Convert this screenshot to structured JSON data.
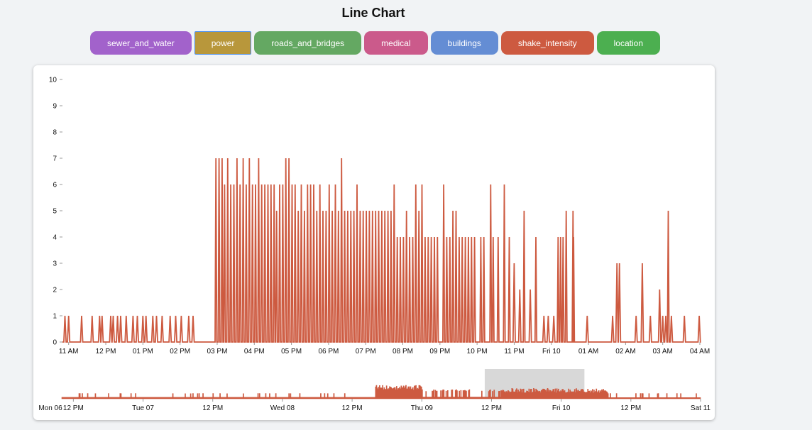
{
  "title": "Line Chart",
  "buttons": [
    {
      "label": "sewer_and_water",
      "color": "#a262cb"
    },
    {
      "label": "power",
      "color": "#b8973b",
      "active": true
    },
    {
      "label": "roads_and_bridges",
      "color": "#64a862"
    },
    {
      "label": "medical",
      "color": "#cb5a8b"
    },
    {
      "label": "buildings",
      "color": "#648dd4"
    },
    {
      "label": "shake_intensity",
      "color": "#cd5a40"
    },
    {
      "label": "location",
      "color": "#4caf50"
    }
  ],
  "chart_data": {
    "type": "line",
    "title": "Line Chart",
    "xlabel": "",
    "ylabel": "",
    "series": [
      {
        "name": "shake_intensity",
        "color": "#cd5a40"
      }
    ],
    "ylim": [
      0,
      10
    ],
    "yticks": [
      "0",
      "1",
      "2",
      "3",
      "4",
      "5",
      "6",
      "7",
      "8",
      "9",
      "10"
    ],
    "main_xticks": [
      "11 AM",
      "12 PM",
      "01 PM",
      "02 PM",
      "03 PM",
      "04 PM",
      "05 PM",
      "06 PM",
      "07 PM",
      "08 PM",
      "09 PM",
      "10 PM",
      "11 PM",
      "Fri 10",
      "01 AM",
      "02 AM",
      "03 AM",
      "04 AM"
    ],
    "x_range": [
      "Thu 09 10:50",
      "Fri 10 04:00"
    ],
    "spikes": [
      [
        "Thu 09 10:54",
        1
      ],
      [
        "Thu 09 11:00",
        1
      ],
      [
        "Thu 09 11:21",
        1
      ],
      [
        "Thu 09 11:38",
        1
      ],
      [
        "Thu 09 11:50",
        1
      ],
      [
        "Thu 09 11:54",
        1
      ],
      [
        "Thu 09 12:08",
        1
      ],
      [
        "Thu 09 12:12",
        1
      ],
      [
        "Thu 09 12:19",
        1
      ],
      [
        "Thu 09 12:24",
        1
      ],
      [
        "Thu 09 12:33",
        1
      ],
      [
        "Thu 09 12:44",
        1
      ],
      [
        "Thu 09 12:51",
        1
      ],
      [
        "Thu 09 13:00",
        1
      ],
      [
        "Thu 09 13:05",
        1
      ],
      [
        "Thu 09 13:16",
        1
      ],
      [
        "Thu 09 13:22",
        1
      ],
      [
        "Thu 09 13:31",
        1
      ],
      [
        "Thu 09 13:44",
        1
      ],
      [
        "Thu 09 13:53",
        1
      ],
      [
        "Thu 09 14:02",
        1
      ],
      [
        "Thu 09 14:14",
        1
      ],
      [
        "Thu 09 14:21",
        1
      ],
      [
        "Thu 09 14:58",
        7
      ],
      [
        "Thu 09 15:03",
        7
      ],
      [
        "Thu 09 15:08",
        7
      ],
      [
        "Thu 09 15:12",
        6
      ],
      [
        "Thu 09 15:17",
        7
      ],
      [
        "Thu 09 15:22",
        6
      ],
      [
        "Thu 09 15:27",
        6
      ],
      [
        "Thu 09 15:32",
        7
      ],
      [
        "Thu 09 15:37",
        6
      ],
      [
        "Thu 09 15:42",
        7
      ],
      [
        "Thu 09 15:47",
        6
      ],
      [
        "Thu 09 15:52",
        7
      ],
      [
        "Thu 09 15:57",
        6
      ],
      [
        "Thu 09 16:02",
        6
      ],
      [
        "Thu 09 16:07",
        7
      ],
      [
        "Thu 09 16:12",
        6
      ],
      [
        "Thu 09 16:17",
        6
      ],
      [
        "Thu 09 16:22",
        6
      ],
      [
        "Thu 09 16:27",
        6
      ],
      [
        "Thu 09 16:32",
        6
      ],
      [
        "Thu 09 16:36",
        5
      ],
      [
        "Thu 09 16:41",
        6
      ],
      [
        "Thu 09 16:46",
        6
      ],
      [
        "Thu 09 16:51",
        7
      ],
      [
        "Thu 09 16:56",
        7
      ],
      [
        "Thu 09 17:01",
        6
      ],
      [
        "Thu 09 17:06",
        6
      ],
      [
        "Thu 09 17:11",
        5
      ],
      [
        "Thu 09 17:16",
        6
      ],
      [
        "Thu 09 17:21",
        5
      ],
      [
        "Thu 09 17:26",
        6
      ],
      [
        "Thu 09 17:31",
        6
      ],
      [
        "Thu 09 17:36",
        6
      ],
      [
        "Thu 09 17:41",
        5
      ],
      [
        "Thu 09 17:46",
        6
      ],
      [
        "Thu 09 17:51",
        5
      ],
      [
        "Thu 09 17:56",
        5
      ],
      [
        "Thu 09 18:01",
        6
      ],
      [
        "Thu 09 18:06",
        5
      ],
      [
        "Thu 09 18:11",
        6
      ],
      [
        "Thu 09 18:16",
        5
      ],
      [
        "Thu 09 18:21",
        7
      ],
      [
        "Thu 09 18:26",
        5
      ],
      [
        "Thu 09 18:31",
        5
      ],
      [
        "Thu 09 18:36",
        5
      ],
      [
        "Thu 09 18:41",
        5
      ],
      [
        "Thu 09 18:46",
        6
      ],
      [
        "Thu 09 18:51",
        5
      ],
      [
        "Thu 09 18:56",
        5
      ],
      [
        "Thu 09 19:01",
        5
      ],
      [
        "Thu 09 19:06",
        5
      ],
      [
        "Thu 09 19:11",
        5
      ],
      [
        "Thu 09 19:16",
        5
      ],
      [
        "Thu 09 19:21",
        5
      ],
      [
        "Thu 09 19:26",
        5
      ],
      [
        "Thu 09 19:31",
        5
      ],
      [
        "Thu 09 19:36",
        5
      ],
      [
        "Thu 09 19:41",
        5
      ],
      [
        "Thu 09 19:46",
        6
      ],
      [
        "Thu 09 19:51",
        4
      ],
      [
        "Thu 09 19:56",
        4
      ],
      [
        "Thu 09 20:01",
        4
      ],
      [
        "Thu 09 20:06",
        5
      ],
      [
        "Thu 09 20:11",
        4
      ],
      [
        "Thu 09 20:16",
        4
      ],
      [
        "Thu 09 20:21",
        6
      ],
      [
        "Thu 09 20:26",
        5
      ],
      [
        "Thu 09 20:31",
        6
      ],
      [
        "Thu 09 20:36",
        4
      ],
      [
        "Thu 09 20:41",
        4
      ],
      [
        "Thu 09 20:46",
        4
      ],
      [
        "Thu 09 20:51",
        4
      ],
      [
        "Thu 09 20:56",
        4
      ],
      [
        "Thu 09 21:06",
        6
      ],
      [
        "Thu 09 21:11",
        4
      ],
      [
        "Thu 09 21:16",
        4
      ],
      [
        "Thu 09 21:21",
        5
      ],
      [
        "Thu 09 21:26",
        5
      ],
      [
        "Thu 09 21:31",
        4
      ],
      [
        "Thu 09 21:36",
        4
      ],
      [
        "Thu 09 21:41",
        4
      ],
      [
        "Thu 09 21:46",
        4
      ],
      [
        "Thu 09 21:51",
        4
      ],
      [
        "Thu 09 21:56",
        4
      ],
      [
        "Thu 09 22:06",
        4
      ],
      [
        "Thu 09 22:11",
        4
      ],
      [
        "Thu 09 22:22",
        6
      ],
      [
        "Thu 09 22:26",
        4
      ],
      [
        "Thu 09 22:34",
        4
      ],
      [
        "Thu 09 22:44",
        6
      ],
      [
        "Thu 09 22:52",
        4
      ],
      [
        "Thu 09 23:00",
        3
      ],
      [
        "Thu 09 23:09",
        2
      ],
      [
        "Thu 09 23:16",
        5
      ],
      [
        "Thu 09 23:26",
        2
      ],
      [
        "Thu 09 23:35",
        4
      ],
      [
        "Thu 09 23:48",
        1
      ],
      [
        "Thu 09 23:55",
        1
      ],
      [
        "Fri 10 00:04",
        1
      ],
      [
        "Fri 10 00:11",
        4
      ],
      [
        "Fri 10 00:15",
        4
      ],
      [
        "Fri 10 00:19",
        4
      ],
      [
        "Fri 10 00:24",
        5
      ],
      [
        "Fri 10 00:35",
        5
      ],
      [
        "Fri 10 00:36",
        4
      ],
      [
        "Fri 10 00:58",
        1
      ],
      [
        "Fri 10 01:39",
        1
      ],
      [
        "Fri 10 01:46",
        3
      ],
      [
        "Fri 10 01:50",
        3
      ],
      [
        "Fri 10 02:17",
        1
      ],
      [
        "Fri 10 02:27",
        3
      ],
      [
        "Fri 10 02:40",
        1
      ],
      [
        "Fri 10 02:55",
        2
      ],
      [
        "Fri 10 03:00",
        1
      ],
      [
        "Fri 10 03:05",
        1
      ],
      [
        "Fri 10 03:09",
        5
      ],
      [
        "Fri 10 03:14",
        1
      ],
      [
        "Fri 10 03:35",
        1
      ],
      [
        "Fri 10 03:59",
        1
      ]
    ],
    "brush": {
      "x_range": [
        "Mon 06 10:00",
        "Sat 11 00:00"
      ],
      "xticks": [
        "Mon 06",
        "12 PM",
        "Tue 07",
        "12 PM",
        "Wed 08",
        "12 PM",
        "Thu 09",
        "12 PM",
        "Fri 10",
        "12 PM",
        "Sat 11"
      ],
      "selection": [
        "Thu 09 10:50",
        "Fri 10 04:00"
      ],
      "segments": [
        [
          "Mon 06 10:00",
          "Wed 08 16:00",
          0.5
        ],
        [
          "Wed 08 16:00",
          "Thu 09 00:00",
          4.5
        ],
        [
          "Thu 09 00:00",
          "Thu 09 14:00",
          1.5
        ],
        [
          "Thu 09 14:00",
          "Fri 10 08:00",
          3.5
        ],
        [
          "Fri 10 08:00",
          "Sat 11 00:00",
          0.4
        ]
      ]
    }
  }
}
